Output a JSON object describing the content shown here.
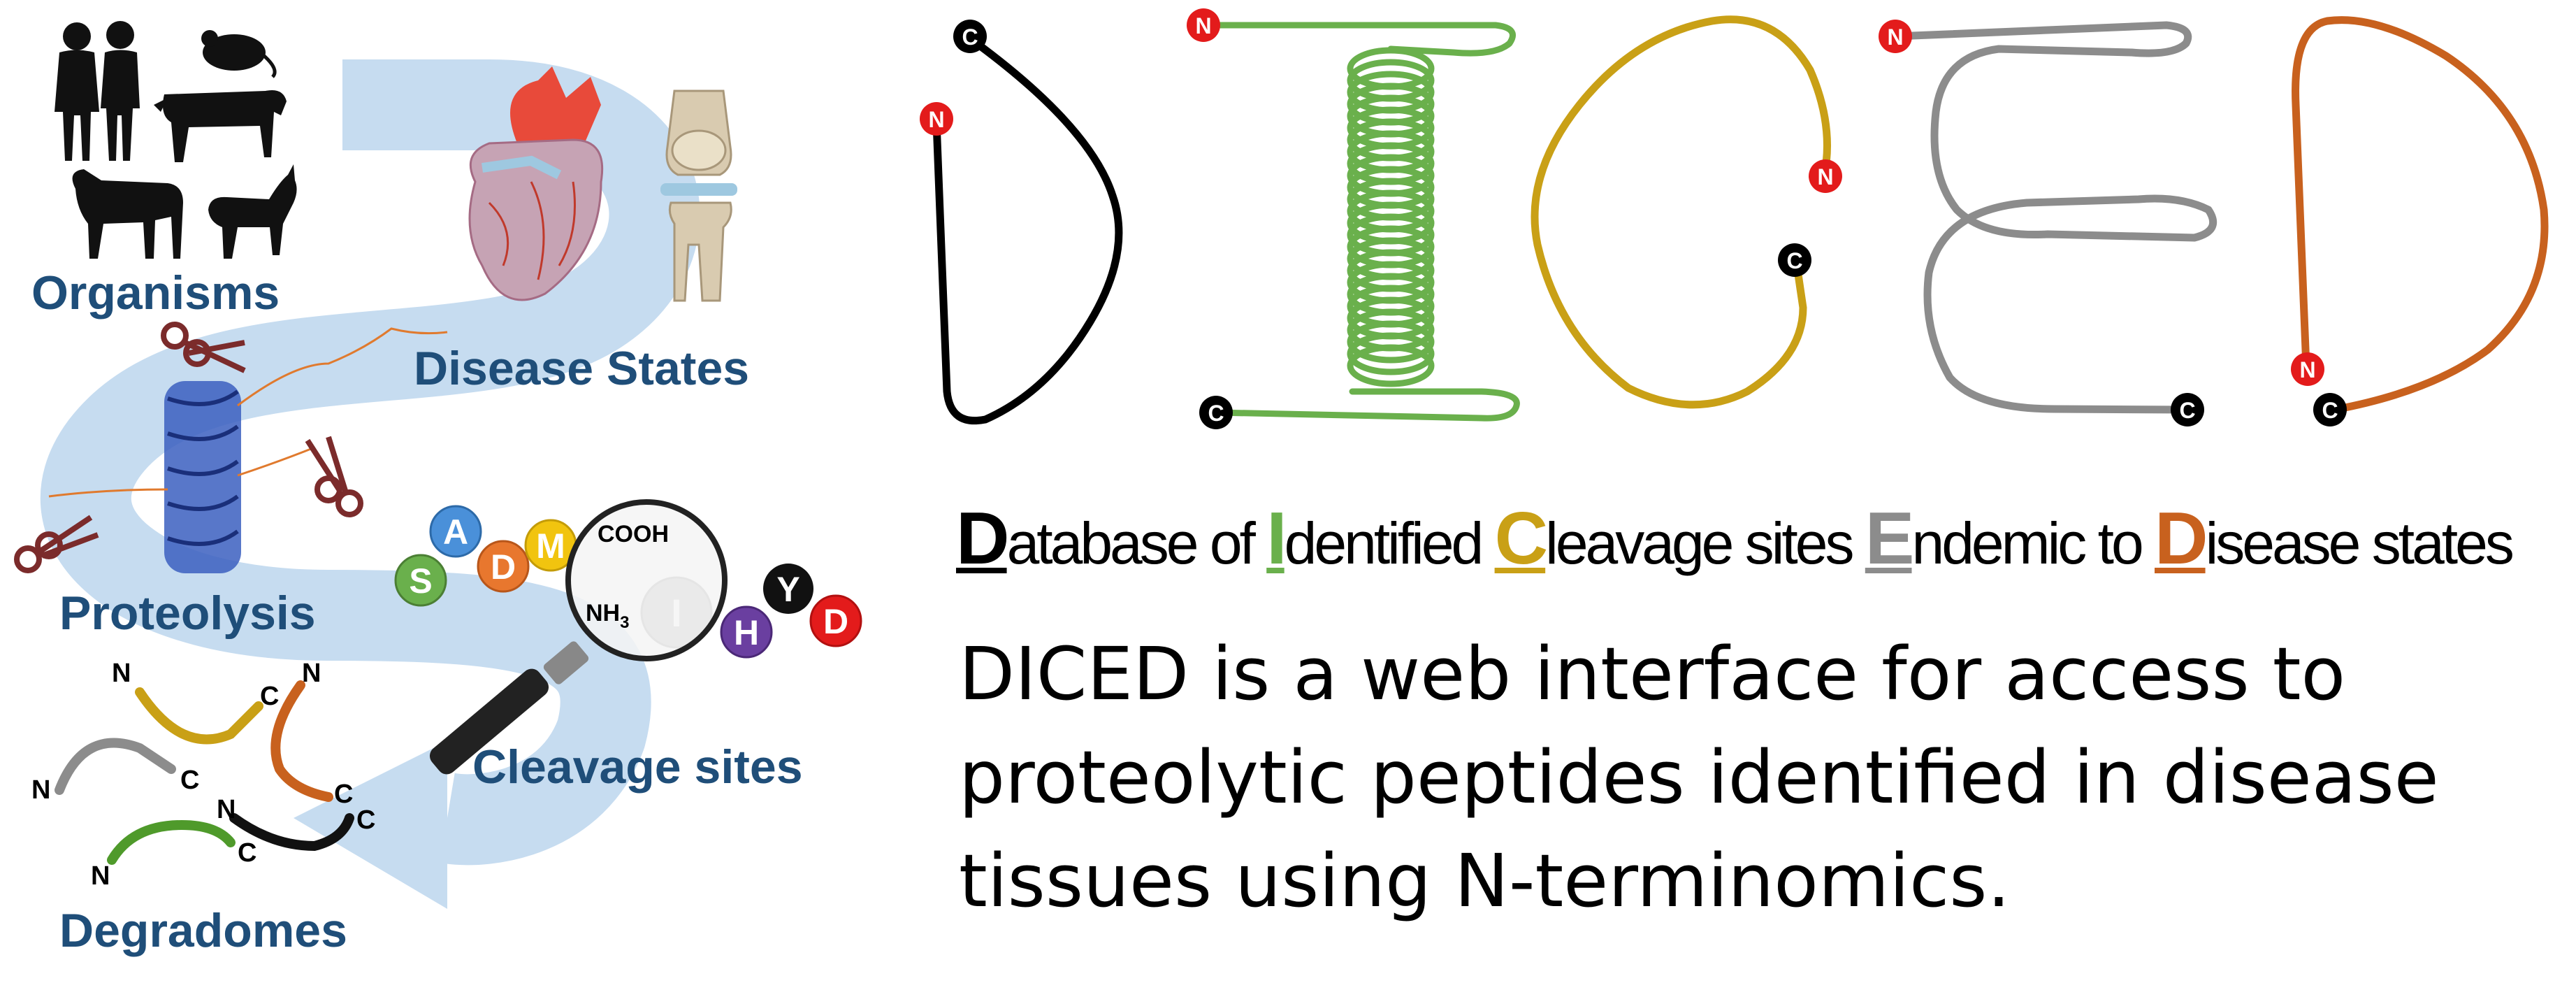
{
  "left_panel": {
    "labels": {
      "organisms": "Organisms",
      "disease_states": "Disease States",
      "proteolysis": "Proteolysis",
      "cleavage_sites": "Cleavage sites",
      "degradomes": "Degradomes"
    },
    "amino_acids": [
      {
        "letter": "S",
        "color": "#6ab04c"
      },
      {
        "letter": "A",
        "color": "#4a90d9"
      },
      {
        "letter": "D",
        "color": "#e8772e"
      },
      {
        "letter": "M",
        "color": "#f1c40f"
      },
      {
        "letter": "I",
        "color": "#b0b0b0"
      },
      {
        "letter": "H",
        "color": "#6a3fa0"
      },
      {
        "letter": "Y",
        "color": "#111111"
      },
      {
        "letter": "D",
        "color": "#e31b1b"
      }
    ],
    "cooh_label": "COOH",
    "nh3_label": "NH",
    "nh3_sub": "3",
    "terminus": {
      "n": "N",
      "c": "C"
    }
  },
  "logo": {
    "letters": [
      {
        "letter": "D",
        "color": "#000000",
        "n_label": "N",
        "c_label": "C"
      },
      {
        "letter": "I",
        "color": "#6ab04c",
        "n_label": "N",
        "c_label": "C"
      },
      {
        "letter": "C",
        "color": "#c9a016",
        "n_label": "N",
        "c_label": "C"
      },
      {
        "letter": "E",
        "color": "#8c8c8c",
        "n_label": "N",
        "c_label": "C"
      },
      {
        "letter": "D",
        "color": "#c8611e",
        "n_label": "N",
        "c_label": "C"
      }
    ],
    "node_colors": {
      "n": "#e31b1b",
      "c": "#000000"
    }
  },
  "acronym": [
    {
      "cap": "D",
      "rest": "atabase of ",
      "color": "#000000"
    },
    {
      "cap": "I",
      "rest": "dentified ",
      "color": "#6ab04c"
    },
    {
      "cap": "C",
      "rest": "leavage sites ",
      "color": "#c9a016"
    },
    {
      "cap": "E",
      "rest": "ndemic to ",
      "color": "#8c8c8c"
    },
    {
      "cap": "D",
      "rest": "isease states",
      "color": "#c8611e"
    }
  ],
  "description": {
    "line1": "DICED is a web interface for access to",
    "line2": "proteolytic peptides identified in disease",
    "line3": "tissues using N-terminomics."
  }
}
